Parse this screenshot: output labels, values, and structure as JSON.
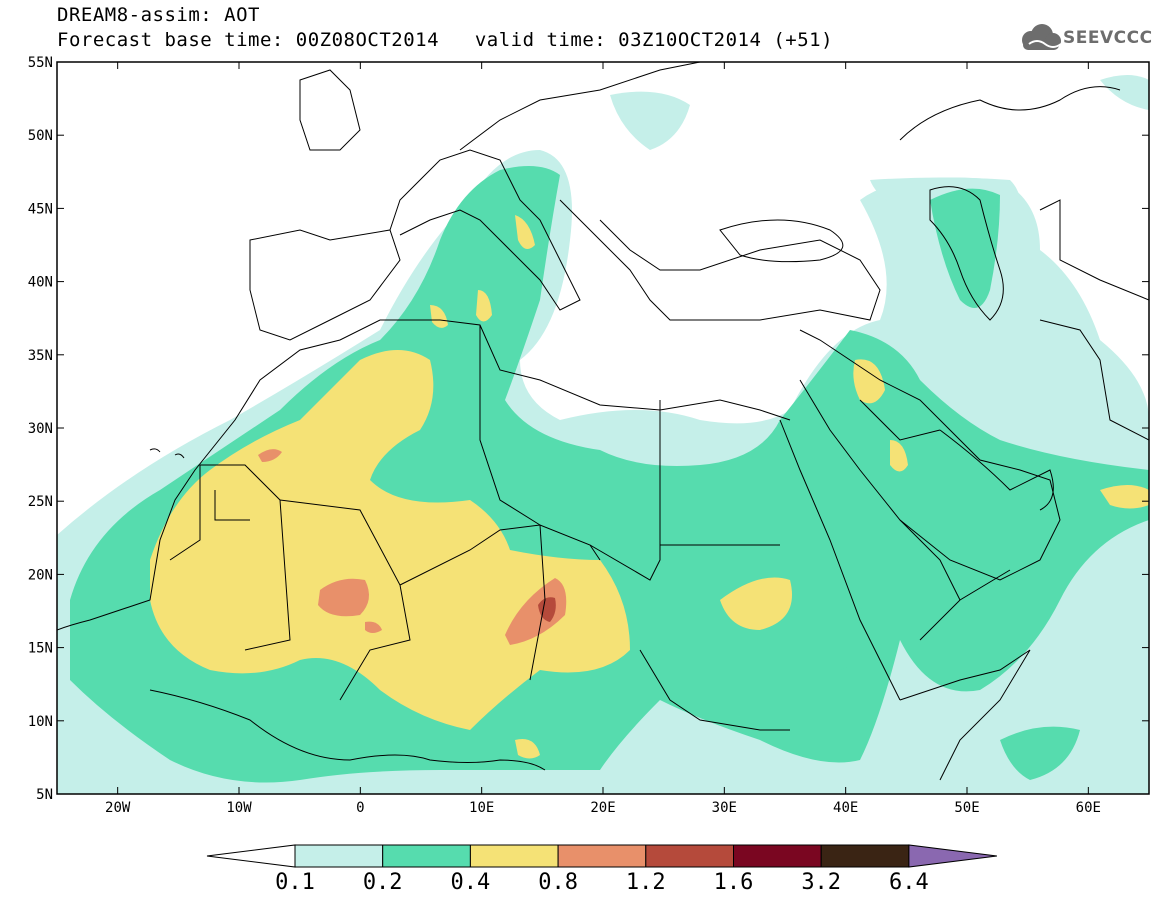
{
  "header": {
    "title_line1": "DREAM8-assim: AOT",
    "title_line2": "Forecast base time: 00Z08OCT2014   valid time: 03Z10OCT2014 (+51)"
  },
  "logo": {
    "text": "SEEVCCC",
    "icon": "cloud-icon"
  },
  "map": {
    "lat_labels": [
      "55N",
      "50N",
      "45N",
      "40N",
      "35N",
      "30N",
      "25N",
      "20N",
      "15N",
      "10N",
      "5N"
    ],
    "lon_labels": [
      "20W",
      "10W",
      "0",
      "10E",
      "20E",
      "30E",
      "40E",
      "50E",
      "60E"
    ],
    "field": "AOT"
  },
  "colorbar": {
    "labels": [
      "0.1",
      "0.2",
      "0.4",
      "0.8",
      "1.2",
      "1.6",
      "3.2",
      "6.4"
    ],
    "colors": [
      "#ffffff",
      "#c5efe9",
      "#56dcae",
      "#f5e276",
      "#e8906a",
      "#b54a3b",
      "#7a0621",
      "#3a2414",
      "#8a68b0"
    ]
  }
}
